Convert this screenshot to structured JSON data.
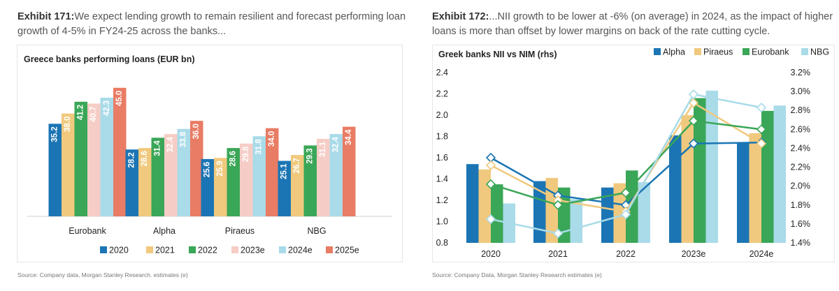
{
  "left": {
    "caption_bold": "Exhibit 171:",
    "caption_text": "We expect lending growth to remain resilient and forecast performing loan growth of 4-5% in FY24-25 across the banks...",
    "source": "Source: Company data, Morgan Stanley Research. estimates (e)"
  },
  "right": {
    "caption_bold": "Exhibit 172:",
    "caption_text": "...NII growth to be lower at -6% (on average) in 2024, as the impact of higher loans is more than offset by lower margins on back of the rate cutting cycle.",
    "source": "Source: Company Data, Morgan Stanley Research estimates (e)"
  },
  "chart_data": [
    {
      "type": "bar",
      "title": "Greece banks performing loans (EUR bn)",
      "categories": [
        "Eurobank",
        "Alpha",
        "Piraeus",
        "NBG"
      ],
      "series": [
        {
          "name": "2020",
          "color": "#1b75b4",
          "values": [
            35.2,
            28.2,
            25.6,
            25.1
          ]
        },
        {
          "name": "2021",
          "color": "#f0c97e",
          "values": [
            38.0,
            28.6,
            25.9,
            26.7
          ]
        },
        {
          "name": "2022",
          "color": "#3aa657",
          "values": [
            41.2,
            31.4,
            28.6,
            29.3
          ]
        },
        {
          "name": "2023e",
          "color": "#f6cdc6",
          "values": [
            40.7,
            32.4,
            29.8,
            31.1
          ]
        },
        {
          "name": "2024e",
          "color": "#a9dbe9",
          "values": [
            42.3,
            33.8,
            31.8,
            32.4
          ]
        },
        {
          "name": "2025e",
          "color": "#e97c64",
          "values": [
            45.0,
            36.0,
            34.0,
            34.4
          ]
        }
      ],
      "labels": [
        [
          "35.2",
          "38.0",
          "41.2",
          "40.7",
          "42.3",
          "45.0"
        ],
        [
          "28.2",
          "28.6",
          "31.4",
          "32.4",
          "33.8",
          "36.0"
        ],
        [
          "25.6",
          "25.9",
          "28.6",
          "29.8",
          "31.8",
          "34.0"
        ],
        [
          "25.1",
          "26.7",
          "29.3",
          "31.1",
          "32.4",
          "34.4"
        ]
      ],
      "ylim": [
        10,
        48
      ],
      "legend": "bottom",
      "grid": false
    },
    {
      "type": "bar+line",
      "title": "Greek banks NII vs NIM (rhs)",
      "categories": [
        "2020",
        "2021",
        "2022",
        "2023e",
        "2024e"
      ],
      "bar_series": [
        {
          "name": "Alpha",
          "color": "#1b75b4",
          "values": [
            1.54,
            1.38,
            1.32,
            1.81,
            1.74
          ]
        },
        {
          "name": "Piraeus",
          "color": "#f0c97e",
          "values": [
            1.49,
            1.41,
            1.36,
            2.0,
            1.83
          ]
        },
        {
          "name": "Eurobank",
          "color": "#3aa657",
          "values": [
            1.35,
            1.32,
            1.48,
            2.16,
            2.04
          ]
        },
        {
          "name": "NBG",
          "color": "#a9dbe9",
          "values": [
            1.17,
            1.21,
            1.37,
            2.23,
            2.09
          ]
        }
      ],
      "line_series": [
        {
          "color": "#1b75b4",
          "values": [
            2.3,
            1.9,
            1.8,
            2.45,
            2.46
          ]
        },
        {
          "color": "#f0c97e",
          "values": [
            2.22,
            1.85,
            1.73,
            2.88,
            2.45
          ]
        },
        {
          "color": "#3aa657",
          "values": [
            2.02,
            1.8,
            1.93,
            2.69,
            2.6
          ]
        },
        {
          "color": "#a9dbe9",
          "values": [
            1.65,
            1.5,
            1.7,
            2.97,
            2.83
          ]
        }
      ],
      "ylim": [
        0.8,
        2.4
      ],
      "yticks": [
        "0.8",
        "1.0",
        "1.2",
        "1.4",
        "1.6",
        "1.8",
        "2.0",
        "2.2",
        "2.4"
      ],
      "y2lim": [
        1.4,
        3.2
      ],
      "y2ticks": [
        "1.4%",
        "1.6%",
        "1.8%",
        "2.0%",
        "2.2%",
        "2.4%",
        "2.6%",
        "2.8%",
        "3.0%",
        "3.2%"
      ],
      "legend": "top-right",
      "grid": false
    }
  ]
}
